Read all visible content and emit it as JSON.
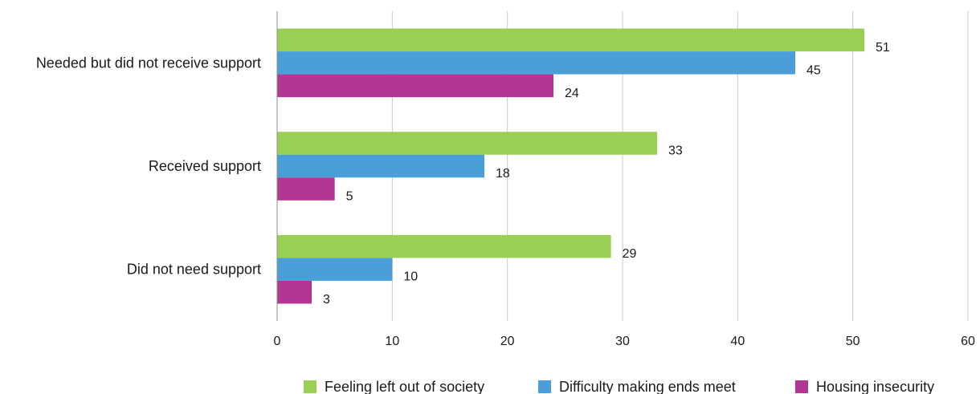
{
  "chart_data": {
    "type": "bar",
    "orientation": "horizontal",
    "categories": [
      "Needed but did not receive support",
      "Received support",
      "Did not need support"
    ],
    "series": [
      {
        "name": "Feeling left out of society",
        "color": "#9bcf53",
        "values": [
          51,
          33,
          29
        ]
      },
      {
        "name": "Difficulty making ends meet",
        "color": "#4a9fd8",
        "values": [
          45,
          18,
          10
        ]
      },
      {
        "name": "Housing insecurity",
        "color": "#b33594",
        "values": [
          24,
          5,
          3
        ]
      }
    ],
    "xlim": [
      0,
      60
    ],
    "xticks": [
      0,
      10,
      20,
      30,
      40,
      50,
      60
    ],
    "xlabel": "",
    "ylabel": "",
    "title": "",
    "grid": "vertical",
    "legend": "bottom-center"
  }
}
